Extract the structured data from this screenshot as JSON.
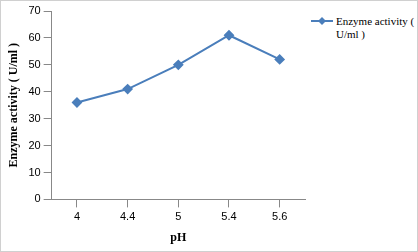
{
  "chart_data": {
    "type": "line",
    "x_label": "pH",
    "y_label": "Enzyme activity ( U/ml )",
    "categories": [
      "4",
      "4.4",
      "5",
      "5.4",
      "5.6"
    ],
    "series": [
      {
        "name": "Enzyme activity ( U/ml )",
        "color": "#4a7ebb",
        "marker": "diamond",
        "values": [
          36,
          41,
          50,
          61,
          52
        ]
      }
    ],
    "ylim": [
      0,
      70
    ],
    "yticks": [
      0,
      10,
      20,
      30,
      40,
      50,
      60,
      70
    ],
    "grid": false,
    "legend": "right"
  }
}
